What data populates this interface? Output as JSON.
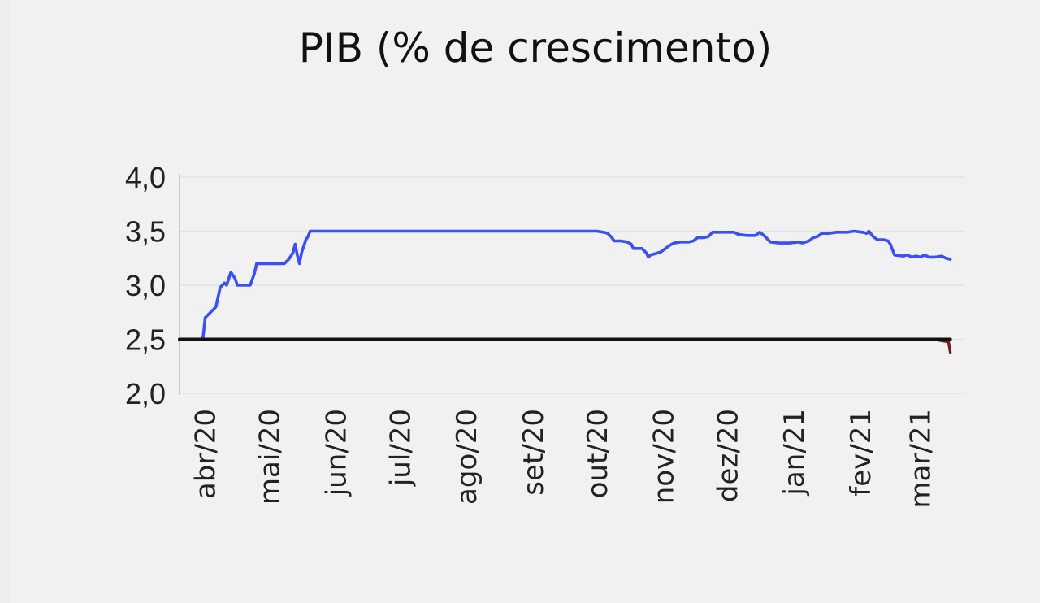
{
  "chart_data": {
    "type": "line",
    "title": "PIB (% de crescimento)",
    "xlabel": "",
    "ylabel": "",
    "ylim": [
      2.0,
      4.0
    ],
    "yticks": [
      "4,0",
      "3,5",
      "3,0",
      "2,5",
      "2,0"
    ],
    "ytick_values": [
      4.0,
      3.5,
      3.0,
      2.5,
      2.0
    ],
    "xlim": [
      "2020-03-20",
      "2021-03-22"
    ],
    "xticks": [
      {
        "label": "abr/20",
        "date": "2020-04-01"
      },
      {
        "label": "mai/20",
        "date": "2020-05-01"
      },
      {
        "label": "jun/20",
        "date": "2020-06-01"
      },
      {
        "label": "jul/20",
        "date": "2020-07-01"
      },
      {
        "label": "ago/20",
        "date": "2020-08-01"
      },
      {
        "label": "set/20",
        "date": "2020-09-01"
      },
      {
        "label": "out/20",
        "date": "2020-10-01"
      },
      {
        "label": "nov/20",
        "date": "2020-11-01"
      },
      {
        "label": "dez/20",
        "date": "2020-12-01"
      },
      {
        "label": "jan/21",
        "date": "2021-01-01"
      },
      {
        "label": "fev/21",
        "date": "2021-02-01"
      },
      {
        "label": "mar/21",
        "date": "2021-03-01"
      }
    ],
    "grid": true,
    "legend": "none",
    "series": [
      {
        "color": "#3a4ff5",
        "points": [
          [
            "2020-03-20",
            2.5
          ],
          [
            "2020-03-30",
            2.5
          ],
          [
            "2020-03-31",
            2.52
          ],
          [
            "2020-04-01",
            2.7
          ],
          [
            "2020-04-03",
            2.74
          ],
          [
            "2020-04-05",
            2.78
          ],
          [
            "2020-04-06",
            2.8
          ],
          [
            "2020-04-08",
            2.98
          ],
          [
            "2020-04-10",
            3.02
          ],
          [
            "2020-04-11",
            3.0
          ],
          [
            "2020-04-13",
            3.12
          ],
          [
            "2020-04-15",
            3.06
          ],
          [
            "2020-04-16",
            3.0
          ],
          [
            "2020-04-20",
            3.0
          ],
          [
            "2020-04-22",
            3.0
          ],
          [
            "2020-04-24",
            3.11
          ],
          [
            "2020-04-25",
            3.2
          ],
          [
            "2020-05-01",
            3.2
          ],
          [
            "2020-05-08",
            3.2
          ],
          [
            "2020-05-10",
            3.24
          ],
          [
            "2020-05-12",
            3.3
          ],
          [
            "2020-05-13",
            3.38
          ],
          [
            "2020-05-14",
            3.28
          ],
          [
            "2020-05-15",
            3.2
          ],
          [
            "2020-05-16",
            3.3
          ],
          [
            "2020-05-18",
            3.42
          ],
          [
            "2020-05-19",
            3.45
          ],
          [
            "2020-05-20",
            3.5
          ],
          [
            "2020-06-01",
            3.5
          ],
          [
            "2020-07-01",
            3.5
          ],
          [
            "2020-08-01",
            3.5
          ],
          [
            "2020-09-01",
            3.5
          ],
          [
            "2020-10-01",
            3.5
          ],
          [
            "2020-10-04",
            3.49
          ],
          [
            "2020-10-06",
            3.48
          ],
          [
            "2020-10-08",
            3.44
          ],
          [
            "2020-10-09",
            3.41
          ],
          [
            "2020-10-12",
            3.41
          ],
          [
            "2020-10-15",
            3.4
          ],
          [
            "2020-10-17",
            3.38
          ],
          [
            "2020-10-18",
            3.34
          ],
          [
            "2020-10-22",
            3.34
          ],
          [
            "2020-10-24",
            3.3
          ],
          [
            "2020-10-25",
            3.26
          ],
          [
            "2020-10-26",
            3.28
          ],
          [
            "2020-10-28",
            3.29
          ],
          [
            "2020-10-31",
            3.31
          ],
          [
            "2020-11-02",
            3.34
          ],
          [
            "2020-11-04",
            3.37
          ],
          [
            "2020-11-06",
            3.39
          ],
          [
            "2020-11-09",
            3.4
          ],
          [
            "2020-11-13",
            3.4
          ],
          [
            "2020-11-15",
            3.41
          ],
          [
            "2020-11-17",
            3.44
          ],
          [
            "2020-11-20",
            3.44
          ],
          [
            "2020-11-22",
            3.45
          ],
          [
            "2020-11-24",
            3.49
          ],
          [
            "2020-11-30",
            3.49
          ],
          [
            "2020-12-04",
            3.49
          ],
          [
            "2020-12-06",
            3.47
          ],
          [
            "2020-12-10",
            3.46
          ],
          [
            "2020-12-14",
            3.46
          ],
          [
            "2020-12-16",
            3.49
          ],
          [
            "2020-12-18",
            3.46
          ],
          [
            "2020-12-21",
            3.4
          ],
          [
            "2020-12-25",
            3.39
          ],
          [
            "2020-12-30",
            3.39
          ],
          [
            "2021-01-03",
            3.4
          ],
          [
            "2021-01-05",
            3.39
          ],
          [
            "2021-01-08",
            3.41
          ],
          [
            "2021-01-10",
            3.44
          ],
          [
            "2021-01-12",
            3.45
          ],
          [
            "2021-01-14",
            3.48
          ],
          [
            "2021-01-17",
            3.48
          ],
          [
            "2021-01-21",
            3.49
          ],
          [
            "2021-01-26",
            3.49
          ],
          [
            "2021-01-29",
            3.5
          ],
          [
            "2021-02-02",
            3.49
          ],
          [
            "2021-02-04",
            3.48
          ],
          [
            "2021-02-05",
            3.5
          ],
          [
            "2021-02-07",
            3.45
          ],
          [
            "2021-02-09",
            3.42
          ],
          [
            "2021-02-12",
            3.42
          ],
          [
            "2021-02-14",
            3.41
          ],
          [
            "2021-02-15",
            3.38
          ],
          [
            "2021-02-17",
            3.28
          ],
          [
            "2021-02-21",
            3.27
          ],
          [
            "2021-02-23",
            3.28
          ],
          [
            "2021-02-25",
            3.26
          ],
          [
            "2021-02-27",
            3.27
          ],
          [
            "2021-03-01",
            3.26
          ],
          [
            "2021-03-03",
            3.28
          ],
          [
            "2021-03-05",
            3.26
          ],
          [
            "2021-03-08",
            3.26
          ],
          [
            "2021-03-11",
            3.27
          ],
          [
            "2021-03-13",
            3.25
          ],
          [
            "2021-03-15",
            3.24
          ]
        ]
      },
      {
        "color": "#7a1a14",
        "points": [
          [
            "2020-03-20",
            2.5
          ],
          [
            "2021-03-08",
            2.5
          ],
          [
            "2021-03-10",
            2.49
          ],
          [
            "2021-03-13",
            2.48
          ],
          [
            "2021-03-14",
            2.5
          ],
          [
            "2021-03-15",
            2.38
          ]
        ]
      },
      {
        "color": "#111111",
        "points": [
          [
            "2020-03-20",
            2.5
          ],
          [
            "2021-03-15",
            2.5
          ]
        ]
      }
    ]
  }
}
